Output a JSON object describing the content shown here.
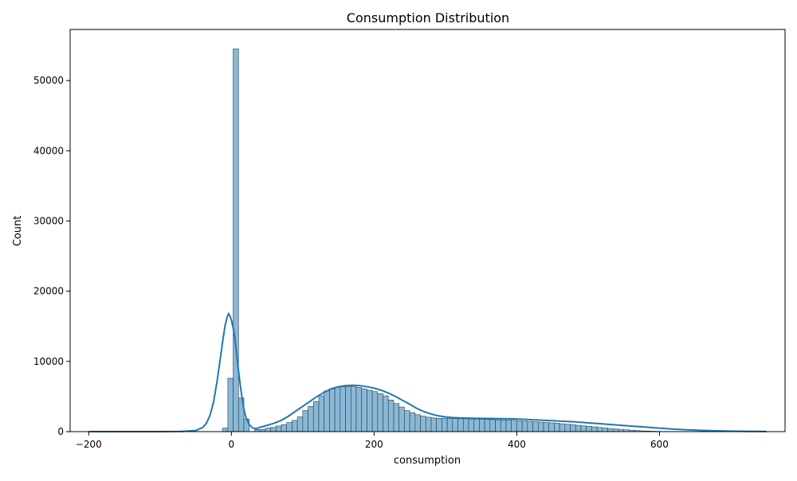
{
  "chart_data": {
    "type": "bar",
    "title": "Consumption Distribution",
    "xlabel": "consumption",
    "ylabel": "Count",
    "xlim": [
      -226,
      776
    ],
    "ylim": [
      0,
      57275
    ],
    "xticks": [
      -200,
      0,
      200,
      400,
      600
    ],
    "yticks": [
      0,
      10000,
      20000,
      30000,
      40000,
      50000
    ],
    "grid": false,
    "bin_start": -200,
    "bin_width": 7.5,
    "bar_color": "#8ab8d6",
    "bar_edge_color": "#2b3e4d",
    "kde_color": "#1f77b4",
    "series": [
      {
        "values": [
          0,
          0,
          0,
          0,
          0,
          0,
          0,
          0,
          0,
          0,
          0,
          0,
          0,
          0,
          0,
          0,
          0,
          0,
          0,
          0,
          0,
          0,
          0,
          0,
          20,
          500,
          7600,
          54500,
          4800,
          1800,
          0,
          300,
          300,
          500,
          600,
          800,
          1000,
          1300,
          1600,
          2100,
          3000,
          3600,
          4300,
          5100,
          5800,
          6100,
          6300,
          6400,
          6450,
          6400,
          6300,
          6100,
          5900,
          5700,
          5400,
          5100,
          4500,
          4000,
          3500,
          3000,
          2700,
          2400,
          2200,
          2050,
          1950,
          1900,
          1900,
          1880,
          1860,
          1840,
          1820,
          1800,
          1780,
          1760,
          1740,
          1720,
          1700,
          1680,
          1650,
          1600,
          1550,
          1500,
          1450,
          1400,
          1350,
          1300,
          1250,
          1200,
          1120,
          1050,
          980,
          900,
          820,
          750,
          680,
          600,
          520,
          450,
          380,
          320,
          260,
          200,
          150,
          110,
          80,
          60,
          40,
          25,
          15,
          10,
          5,
          3,
          2,
          1,
          1,
          0,
          0
        ]
      },
      {
        "kde_x": [
          -200,
          -100,
          -70,
          -50,
          -40,
          -35,
          -30,
          -25,
          -20,
          -15,
          -12,
          -9,
          -6,
          -4,
          -2,
          0,
          2,
          4,
          6,
          8,
          10,
          12,
          14,
          17,
          20,
          25,
          30,
          35,
          40,
          45,
          50,
          60,
          70,
          80,
          90,
          100,
          110,
          120,
          130,
          140,
          150,
          160,
          170,
          180,
          190,
          200,
          210,
          220,
          230,
          240,
          250,
          260,
          270,
          280,
          290,
          300,
          310,
          320,
          340,
          360,
          380,
          400,
          420,
          440,
          460,
          480,
          500,
          520,
          540,
          560,
          580,
          600,
          620,
          640,
          660,
          680,
          700,
          720,
          750
        ],
        "kde_y": [
          0,
          0,
          30,
          150,
          600,
          1200,
          2300,
          4200,
          7200,
          10800,
          13000,
          15000,
          16300,
          16800,
          16500,
          15900,
          15000,
          13900,
          12300,
          10500,
          8700,
          7000,
          5500,
          3500,
          2100,
          1000,
          500,
          450,
          600,
          750,
          900,
          1200,
          1600,
          2200,
          2900,
          3600,
          4300,
          5000,
          5600,
          6100,
          6400,
          6550,
          6600,
          6550,
          6400,
          6200,
          5900,
          5500,
          5000,
          4450,
          3900,
          3300,
          2850,
          2500,
          2250,
          2100,
          2000,
          1950,
          1900,
          1870,
          1850,
          1800,
          1700,
          1600,
          1500,
          1400,
          1250,
          1100,
          950,
          800,
          650,
          500,
          350,
          250,
          170,
          110,
          70,
          40,
          10
        ]
      }
    ]
  }
}
